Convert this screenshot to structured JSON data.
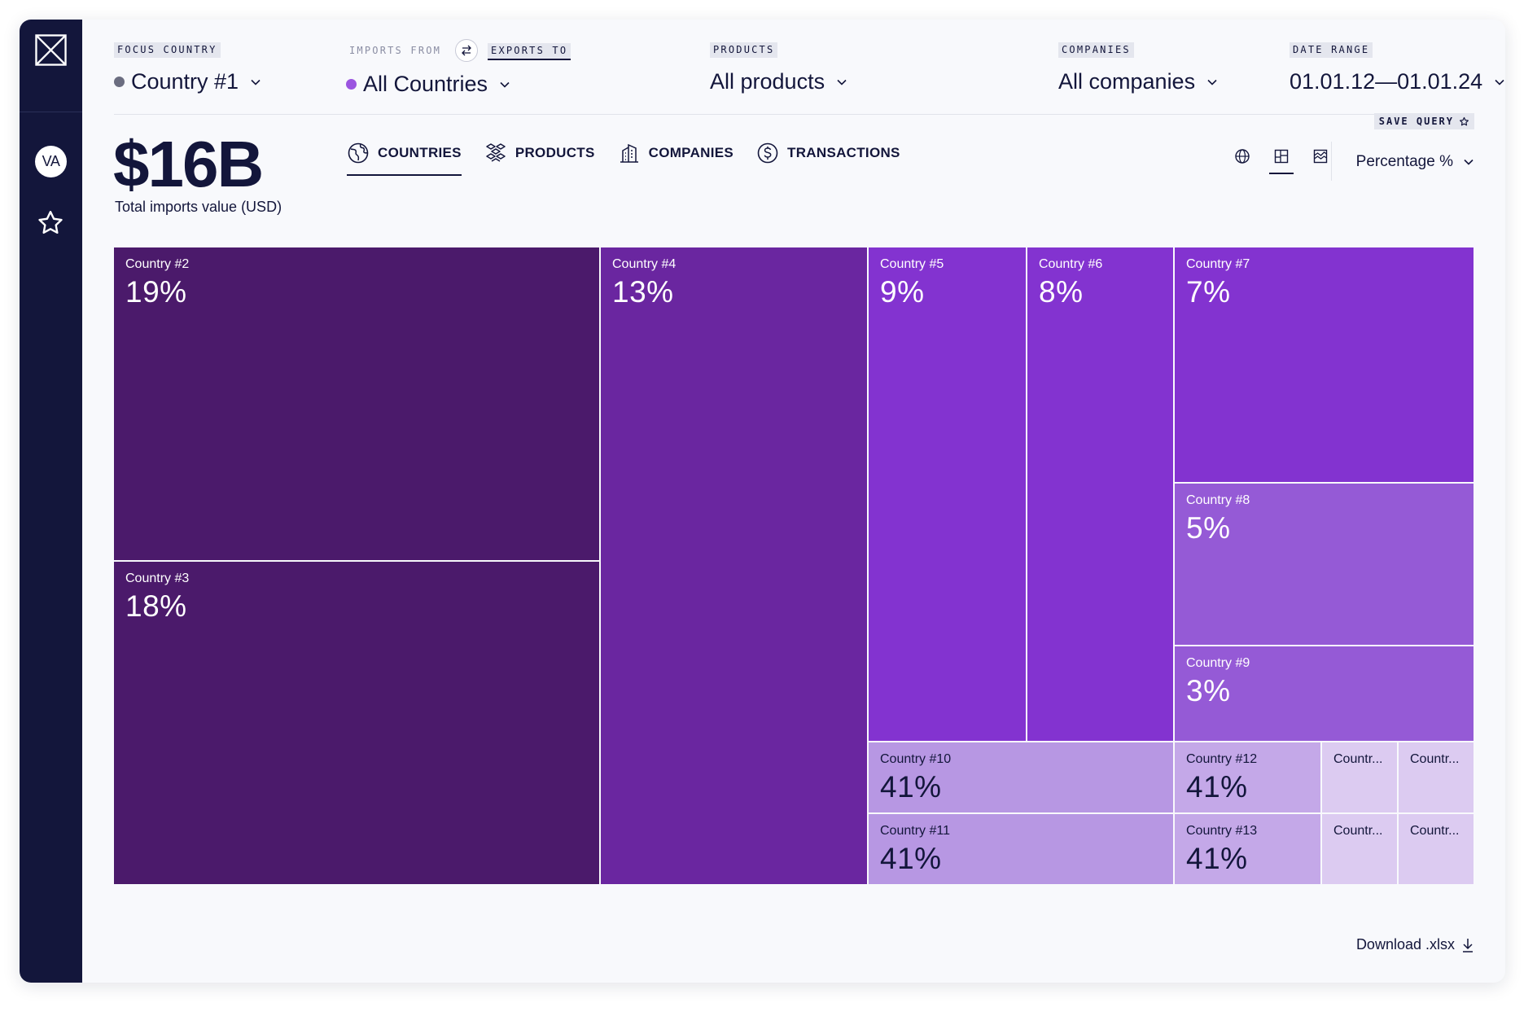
{
  "sidebar": {
    "logo_icon": "x-box-logo-icon",
    "avatar_initials": "VA",
    "favorites_icon": "star-icon"
  },
  "filters": {
    "focus_country": {
      "label": "FOCUS COUNTRY",
      "value": "Country #1",
      "dot_color": "#6b6d80"
    },
    "partners": {
      "imports_label": "IMPORTS FROM",
      "exports_label": "EXPORTS TO",
      "value": "All Countries",
      "dot_color": "#9b55e0",
      "swap_icon": "swap-arrows-icon"
    },
    "products": {
      "label": "PRODUCTS",
      "value": "All products"
    },
    "companies": {
      "label": "COMPANIES",
      "value": "All companies"
    },
    "date_range": {
      "label": "DATE RANGE",
      "value": "01.01.12—01.01.24"
    }
  },
  "save_query": "SAVE QUERY",
  "summary": {
    "value": "$16B",
    "label": "Total imports value (USD)"
  },
  "tabs": [
    {
      "label": "COUNTRIES",
      "icon": "globe-icon",
      "active": true
    },
    {
      "label": "PRODUCTS",
      "icon": "boxes-icon",
      "active": false
    },
    {
      "label": "COMPANIES",
      "icon": "building-icon",
      "active": false
    },
    {
      "label": "TRANSACTIONS",
      "icon": "dollar-icon",
      "active": false
    }
  ],
  "views": [
    {
      "icon": "globe-view-icon",
      "active": false
    },
    {
      "icon": "treemap-view-icon",
      "active": true
    },
    {
      "icon": "area-chart-view-icon",
      "active": false
    }
  ],
  "metric": {
    "value": "Percentage %"
  },
  "chart_data": {
    "type": "treemap",
    "tiles": [
      {
        "name": "Country #2",
        "value": "19%",
        "color": "#4b1a6b"
      },
      {
        "name": "Country #3",
        "value": "18%",
        "color": "#4b1a6b"
      },
      {
        "name": "Country #4",
        "value": "13%",
        "color": "#6a26a0"
      },
      {
        "name": "Country #5",
        "value": "9%",
        "color": "#8333d0"
      },
      {
        "name": "Country #6",
        "value": "8%",
        "color": "#8333d0"
      },
      {
        "name": "Country #7",
        "value": "7%",
        "color": "#8333d0"
      },
      {
        "name": "Country #8",
        "value": "5%",
        "color": "#955ad6"
      },
      {
        "name": "Country #9",
        "value": "3%",
        "color": "#955ad6"
      },
      {
        "name": "Country #10",
        "value": "41%",
        "color": "#b797e3"
      },
      {
        "name": "Country #11",
        "value": "41%",
        "color": "#b797e3"
      },
      {
        "name": "Country #12",
        "value": "41%",
        "color": "#c4a8e8"
      },
      {
        "name": "Country #13",
        "value": "41%",
        "color": "#c4a8e8"
      },
      {
        "name": "Countr...",
        "value": "",
        "color": "#dccbf1"
      },
      {
        "name": "Countr...",
        "value": "",
        "color": "#dccbf1"
      },
      {
        "name": "Countr...",
        "value": "",
        "color": "#dccbf1"
      },
      {
        "name": "Countr...",
        "value": "",
        "color": "#dccbf1"
      }
    ]
  },
  "download": {
    "label": "Download .xlsx",
    "icon": "download-arrow-icon"
  }
}
